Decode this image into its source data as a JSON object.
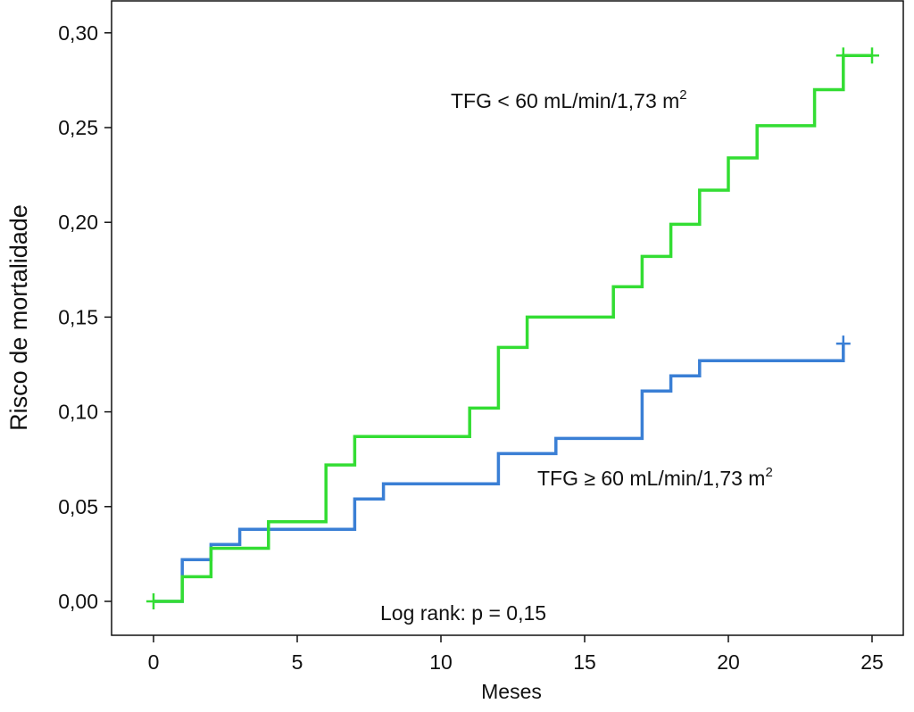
{
  "chart_data": {
    "type": "line",
    "step": true,
    "title": "",
    "xlabel": "Meses",
    "ylabel": "Risco de mortalidade",
    "xlim": [
      0,
      25
    ],
    "ylim": [
      0,
      0.3
    ],
    "xticks": [
      0,
      5,
      10,
      15,
      20,
      25
    ],
    "xtick_labels": [
      "0",
      "5",
      "10",
      "15",
      "20",
      "25"
    ],
    "yticks": [
      0,
      0.05,
      0.1,
      0.15,
      0.2,
      0.25,
      0.3
    ],
    "ytick_labels": [
      "0,00",
      "0,05",
      "0,10",
      "0,15",
      "0,20",
      "0,25",
      "0,30"
    ],
    "grid": false,
    "series": [
      {
        "name": "TFG < 60 mL/min/1,73 m",
        "name_sup": "2",
        "color": "#33dd33",
        "x": [
          0,
          1,
          2,
          4,
          6,
          7,
          11,
          12,
          13,
          16,
          17,
          18,
          19,
          20,
          21,
          23,
          24,
          25
        ],
        "y": [
          0,
          0.013,
          0.028,
          0.042,
          0.072,
          0.087,
          0.102,
          0.134,
          0.15,
          0.166,
          0.182,
          0.199,
          0.217,
          0.234,
          0.251,
          0.27,
          0.288,
          0.288
        ],
        "censored_x": [
          0,
          24,
          25
        ]
      },
      {
        "name": "TFG ≥ 60 mL/min/1,73 m",
        "name_sup": "2",
        "color": "#3a7fd5",
        "x": [
          0,
          1,
          2,
          3,
          7,
          8,
          12,
          14,
          17,
          18,
          19,
          24
        ],
        "y": [
          0,
          0.022,
          0.03,
          0.038,
          0.054,
          0.062,
          0.078,
          0.086,
          0.111,
          0.119,
          0.127,
          0.136
        ],
        "censored_x": [
          24
        ]
      }
    ],
    "annotations": [
      "Log rank: p = 0,15"
    ]
  }
}
